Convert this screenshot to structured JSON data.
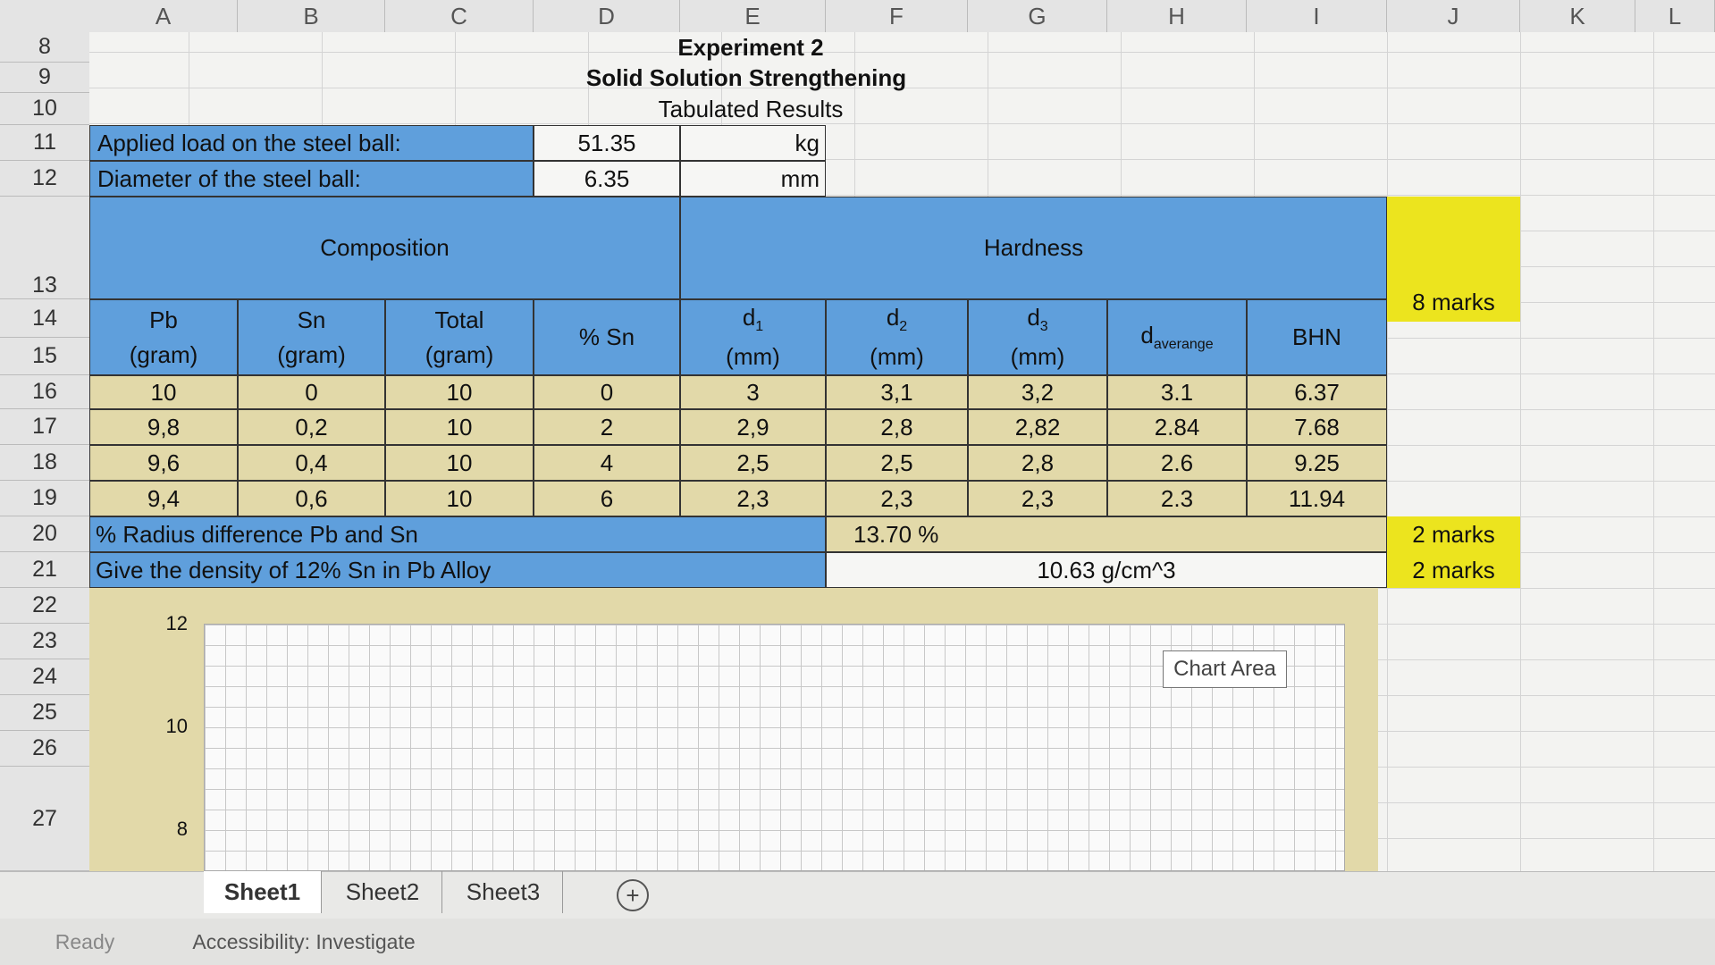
{
  "column_headers": [
    "A",
    "B",
    "C",
    "D",
    "E",
    "F",
    "G",
    "H",
    "I",
    "J",
    "K",
    "L"
  ],
  "row_numbers": [
    8,
    9,
    10,
    11,
    12,
    13,
    14,
    15,
    16,
    17,
    18,
    19,
    20,
    21,
    22,
    23,
    24,
    25,
    26,
    27
  ],
  "title": "Experiment 2",
  "subtitle": "Solid Solution Strengthening",
  "caption": "Tabulated Results",
  "inputs": [
    {
      "label": "Applied load on the steel ball:",
      "value": 51.35,
      "unit": "kg"
    },
    {
      "label": "Diameter of the steel ball:",
      "value": 6.35,
      "unit": "mm"
    }
  ],
  "table": {
    "group_headers": [
      "Composition",
      "Hardness"
    ],
    "columns": [
      {
        "main": "Pb",
        "unit": "(gram)"
      },
      {
        "main": "Sn",
        "unit": "(gram)"
      },
      {
        "main": "Total",
        "unit": "(gram)"
      },
      {
        "main": "% Sn"
      },
      {
        "main": "d",
        "sub": "1",
        "unit": "(mm)"
      },
      {
        "main": "d",
        "sub": "2",
        "unit": "(mm)"
      },
      {
        "main": "d",
        "sub": "3",
        "unit": "(mm)"
      },
      {
        "main": "d",
        "sub": "averange"
      },
      {
        "main": "BHN"
      }
    ],
    "rows": [
      [
        10,
        0,
        10,
        0,
        3,
        "3,1",
        "3,2",
        3.1,
        6.37
      ],
      [
        "9,8",
        "0,2",
        10,
        2,
        "2,9",
        "2,8",
        "2,82",
        2.84,
        7.68
      ],
      [
        "9,6",
        "0,4",
        10,
        4,
        "2,5",
        "2,5",
        "2,8",
        2.6,
        9.25
      ],
      [
        "9,4",
        "0,6",
        10,
        6,
        "2,3",
        "2,3",
        "2,3",
        2.3,
        11.94
      ]
    ]
  },
  "questions": [
    {
      "text": "% Radius difference Pb and Sn",
      "answer": "13.70 %"
    },
    {
      "text": "Give the density of 12% Sn in Pb Alloy",
      "answer": "10.63 g/cm^3"
    }
  ],
  "marks": [
    "8 marks",
    "2 marks",
    "2 marks"
  ],
  "chart": {
    "yticks": [
      12,
      10,
      8
    ],
    "tooltip": "Chart Area"
  },
  "sheet_tabs": [
    "Sheet1",
    "Sheet2",
    "Sheet3"
  ],
  "add_sheet": "+",
  "status": {
    "ready": "Ready",
    "accessibility": "Accessibility: Investigate"
  }
}
